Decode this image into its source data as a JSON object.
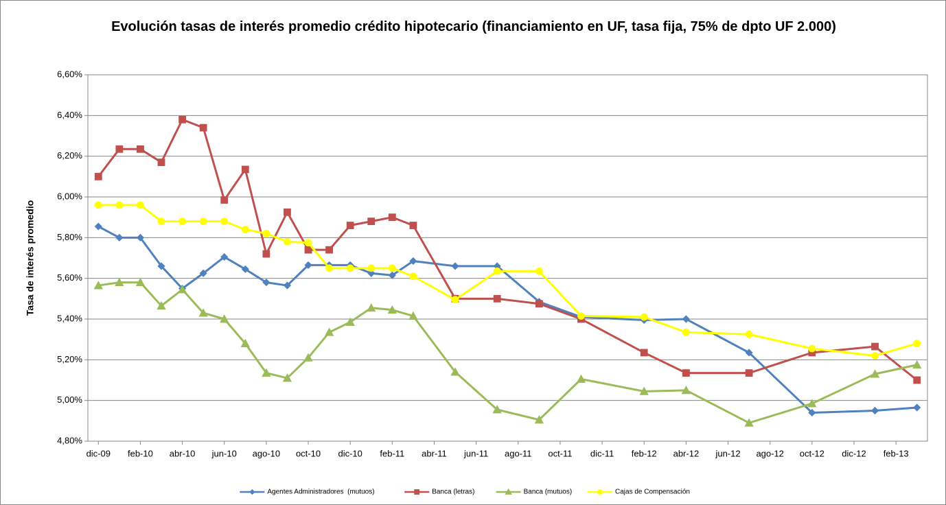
{
  "chart_data": {
    "type": "line",
    "title": "Evolución tasas de interés promedio crédito hipotecario (financiamiento en UF, tasa fija, 75% de dpto UF 2.000)",
    "y_label": "Tasa de interés promedio",
    "x": [
      "2009-12",
      "2010-01",
      "2010-02",
      "2010-03",
      "2010-04",
      "2010-05",
      "2010-06",
      "2010-07",
      "2010-08",
      "2010-09",
      "2010-10",
      "2010-11",
      "2010-12",
      "2011-01",
      "2011-02",
      "2011-03",
      "2011-05",
      "2011-07",
      "2011-09",
      "2011-11",
      "2012-02",
      "2012-04",
      "2012-07",
      "2012-10",
      "2013-01",
      "2013-03"
    ],
    "xlim": [
      "2009-12",
      "2013-03"
    ],
    "xticks": [
      {
        "value": "2009-12",
        "label": "dic-09"
      },
      {
        "value": "2010-02",
        "label": "feb-10"
      },
      {
        "value": "2010-04",
        "label": "abr-10"
      },
      {
        "value": "2010-06",
        "label": "jun-10"
      },
      {
        "value": "2010-08",
        "label": "ago-10"
      },
      {
        "value": "2010-10",
        "label": "oct-10"
      },
      {
        "value": "2010-12",
        "label": "dic-10"
      },
      {
        "value": "2011-02",
        "label": "feb-11"
      },
      {
        "value": "2011-04",
        "label": "abr-11"
      },
      {
        "value": "2011-06",
        "label": "jun-11"
      },
      {
        "value": "2011-08",
        "label": "ago-11"
      },
      {
        "value": "2011-10",
        "label": "oct-11"
      },
      {
        "value": "2011-12",
        "label": "dic-11"
      },
      {
        "value": "2012-02",
        "label": "feb-12"
      },
      {
        "value": "2012-04",
        "label": "abr-12"
      },
      {
        "value": "2012-06",
        "label": "jun-12"
      },
      {
        "value": "2012-08",
        "label": "ago-12"
      },
      {
        "value": "2012-10",
        "label": "oct-12"
      },
      {
        "value": "2012-12",
        "label": "dic-12"
      },
      {
        "value": "2013-02",
        "label": "feb-13"
      }
    ],
    "ylim": [
      4.8,
      6.6
    ],
    "yticks": [
      {
        "value": 4.8,
        "label": "4,80%"
      },
      {
        "value": 5.0,
        "label": "5,00%"
      },
      {
        "value": 5.2,
        "label": "5,20%"
      },
      {
        "value": 5.4,
        "label": "5,40%"
      },
      {
        "value": 5.6,
        "label": "5,60%"
      },
      {
        "value": 5.8,
        "label": "5,80%"
      },
      {
        "value": 6.0,
        "label": "6,00%"
      },
      {
        "value": 6.2,
        "label": "6,20%"
      },
      {
        "value": 6.4,
        "label": "6,40%"
      },
      {
        "value": 6.6,
        "label": "6,60%"
      }
    ],
    "grid": true,
    "legend": "bottom",
    "series": [
      {
        "name": "Agentes Administradores  (mutuos)",
        "color": "#4f81bd",
        "marker": "diamond",
        "values": [
          5.855,
          5.8,
          5.8,
          5.66,
          5.55,
          5.625,
          5.705,
          5.645,
          5.58,
          5.565,
          5.665,
          5.665,
          5.665,
          5.625,
          5.615,
          5.685,
          5.66,
          5.66,
          5.485,
          5.41,
          5.395,
          5.4,
          5.235,
          4.94,
          4.95,
          4.965
        ]
      },
      {
        "name": "Banca (letras)",
        "color": "#c0504d",
        "marker": "square",
        "values": [
          6.1,
          6.235,
          6.235,
          6.17,
          6.38,
          6.34,
          5.985,
          6.135,
          5.72,
          5.925,
          5.74,
          5.74,
          5.86,
          5.88,
          5.9,
          5.86,
          5.5,
          5.5,
          5.475,
          5.4,
          5.235,
          5.135,
          5.135,
          5.235,
          5.265,
          5.1
        ]
      },
      {
        "name": "Banca (mutuos)",
        "color": "#9bbb59",
        "marker": "triangle",
        "values": [
          5.565,
          5.58,
          5.58,
          5.465,
          5.545,
          5.43,
          5.4,
          5.28,
          5.135,
          5.11,
          5.21,
          5.335,
          5.385,
          5.455,
          5.445,
          5.415,
          5.14,
          4.955,
          4.905,
          5.105,
          5.045,
          5.05,
          4.89,
          4.985,
          5.13,
          5.175
        ]
      },
      {
        "name": "Cajas de Compensación",
        "color": "#ffff00",
        "marker": "circle",
        "values": [
          5.96,
          5.96,
          5.96,
          5.88,
          5.88,
          5.88,
          5.88,
          5.84,
          5.82,
          5.78,
          5.775,
          5.65,
          5.65,
          5.65,
          5.65,
          5.61,
          5.495,
          5.635,
          5.635,
          5.415,
          5.41,
          5.335,
          5.325,
          5.255,
          5.22,
          5.28
        ]
      }
    ]
  }
}
